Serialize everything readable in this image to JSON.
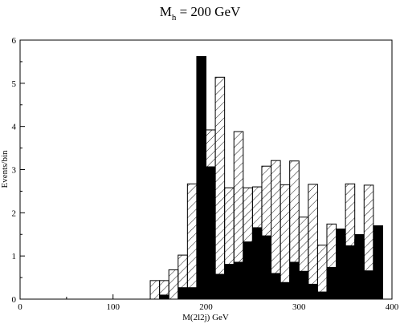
{
  "chart_data": {
    "type": "bar",
    "title_main": "M",
    "title_sub": "h",
    "title_rest": " = 200 GeV",
    "xlabel": "M(2l2j) GeV",
    "ylabel": "Events/bin",
    "xlim": [
      0,
      400
    ],
    "ylim": [
      0,
      6
    ],
    "xticks": [
      "0",
      "100",
      "200",
      "300",
      "400"
    ],
    "xtick_values": [
      0,
      100,
      200,
      300,
      400
    ],
    "yticks": [
      "0",
      "1",
      "2",
      "3",
      "4",
      "5",
      "6"
    ],
    "ytick_values": [
      0,
      1,
      2,
      3,
      4,
      5,
      6
    ],
    "bin_width": 10,
    "grid": false,
    "series": [
      {
        "style": "hatched",
        "bins": [
          {
            "x0": 140,
            "value": 0.43
          },
          {
            "x0": 150,
            "value": 0.43
          },
          {
            "x0": 160,
            "value": 0.68
          },
          {
            "x0": 170,
            "value": 1.02
          },
          {
            "x0": 180,
            "value": 2.67
          },
          {
            "x0": 190,
            "value": 5.62
          },
          {
            "x0": 200,
            "value": 3.92
          },
          {
            "x0": 210,
            "value": 5.14
          },
          {
            "x0": 220,
            "value": 2.58
          },
          {
            "x0": 230,
            "value": 3.88
          },
          {
            "x0": 240,
            "value": 2.58
          },
          {
            "x0": 250,
            "value": 2.6
          },
          {
            "x0": 260,
            "value": 3.08
          },
          {
            "x0": 270,
            "value": 3.21
          },
          {
            "x0": 280,
            "value": 2.65
          },
          {
            "x0": 290,
            "value": 3.2
          },
          {
            "x0": 300,
            "value": 1.9
          },
          {
            "x0": 310,
            "value": 2.66
          },
          {
            "x0": 320,
            "value": 1.25
          },
          {
            "x0": 330,
            "value": 1.74
          },
          {
            "x0": 340,
            "value": 1.43
          },
          {
            "x0": 350,
            "value": 2.67
          },
          {
            "x0": 360,
            "value": 1.38
          },
          {
            "x0": 370,
            "value": 2.64
          },
          {
            "x0": 380,
            "value": 1.7
          }
        ]
      },
      {
        "style": "filled",
        "bins": [
          {
            "x0": 150,
            "value": 0.1
          },
          {
            "x0": 170,
            "value": 0.27
          },
          {
            "x0": 180,
            "value": 0.27
          },
          {
            "x0": 190,
            "value": 5.62
          },
          {
            "x0": 200,
            "value": 3.07
          },
          {
            "x0": 210,
            "value": 0.58
          },
          {
            "x0": 220,
            "value": 0.81
          },
          {
            "x0": 230,
            "value": 0.86
          },
          {
            "x0": 240,
            "value": 1.33
          },
          {
            "x0": 250,
            "value": 1.66
          },
          {
            "x0": 260,
            "value": 1.47
          },
          {
            "x0": 270,
            "value": 0.6
          },
          {
            "x0": 280,
            "value": 0.39
          },
          {
            "x0": 290,
            "value": 0.86
          },
          {
            "x0": 300,
            "value": 0.65
          },
          {
            "x0": 310,
            "value": 0.35
          },
          {
            "x0": 320,
            "value": 0.17
          },
          {
            "x0": 330,
            "value": 0.74
          },
          {
            "x0": 340,
            "value": 1.63
          },
          {
            "x0": 350,
            "value": 1.24
          },
          {
            "x0": 360,
            "value": 1.5
          },
          {
            "x0": 370,
            "value": 0.66
          },
          {
            "x0": 380,
            "value": 1.7
          }
        ]
      }
    ]
  }
}
